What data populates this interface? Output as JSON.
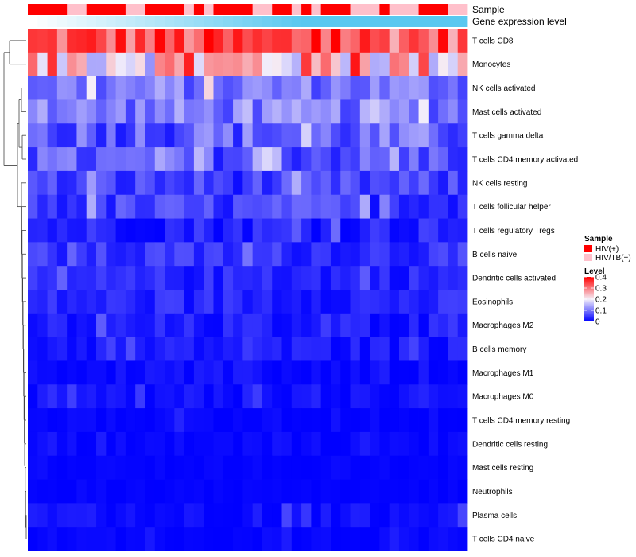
{
  "chart_data": {
    "type": "heatmap",
    "title": "",
    "annotation_tracks": [
      {
        "name": "Sample",
        "label": "Sample"
      },
      {
        "name": "Gene expression level",
        "label": "Gene expression level"
      }
    ],
    "rows": [
      "T cells CD8",
      "Monocytes",
      "NK cells activated",
      "Mast cells activated",
      "T cells gamma delta",
      "T cells CD4 memory activated",
      "NK cells resting",
      "T cells follicular helper",
      "T cells regulatory  Tregs",
      "B cells naive",
      "Dendritic cells activated",
      "Eosinophils",
      "Macrophages M2",
      "B cells memory",
      "Macrophages M1",
      "Macrophages M0",
      "T cells CD4 memory resting",
      "Dendritic cells resting",
      "Mast cells resting",
      "Neutrophils",
      "Plasma cells",
      "T cells CD4 naive"
    ],
    "row_means": [
      0.33,
      0.24,
      0.1,
      0.1,
      0.08,
      0.07,
      0.05,
      0.05,
      0.03,
      0.04,
      0.03,
      0.03,
      0.02,
      0.02,
      0.01,
      0.01,
      0.005,
      0.005,
      0.003,
      0.002,
      0.01,
      0.003
    ],
    "row_spread": [
      0.08,
      0.12,
      0.05,
      0.05,
      0.06,
      0.05,
      0.04,
      0.04,
      0.03,
      0.03,
      0.025,
      0.025,
      0.025,
      0.02,
      0.015,
      0.02,
      0.01,
      0.01,
      0.005,
      0.004,
      0.02,
      0.01
    ],
    "n_samples": 45,
    "sample_group_pattern": [
      1,
      1,
      1,
      1,
      0,
      0,
      1,
      1,
      1,
      1,
      0,
      0,
      1,
      1,
      1,
      1,
      0,
      1,
      0,
      1,
      1,
      1,
      1,
      0,
      0,
      1,
      1,
      0,
      1,
      0,
      1,
      1,
      1,
      0,
      0,
      0,
      1,
      0,
      0,
      0,
      1,
      1,
      1,
      0,
      0
    ],
    "colorbar": {
      "title": "Level",
      "ticks": [
        0,
        0.1,
        0.2,
        0.3,
        0.4
      ],
      "range": [
        0,
        0.4
      ]
    },
    "colors": {
      "low": "#0000ff",
      "mid": "#f5f0fa",
      "high": "#ff0000",
      "sample_hiv": "#ff0000",
      "sample_hivtb": "#ffc0cb",
      "expr_low": "#ffffff",
      "expr_high": "#5ac8f0"
    },
    "legend": {
      "sample_title": "Sample",
      "items": [
        {
          "label": "HIV(+)",
          "color": "#ff0000"
        },
        {
          "label": "HIV/TB(+)",
          "color": "#ffc0cb"
        }
      ],
      "level_title": "Level"
    },
    "dendrogram": "rows-left",
    "legend_position": "right"
  }
}
